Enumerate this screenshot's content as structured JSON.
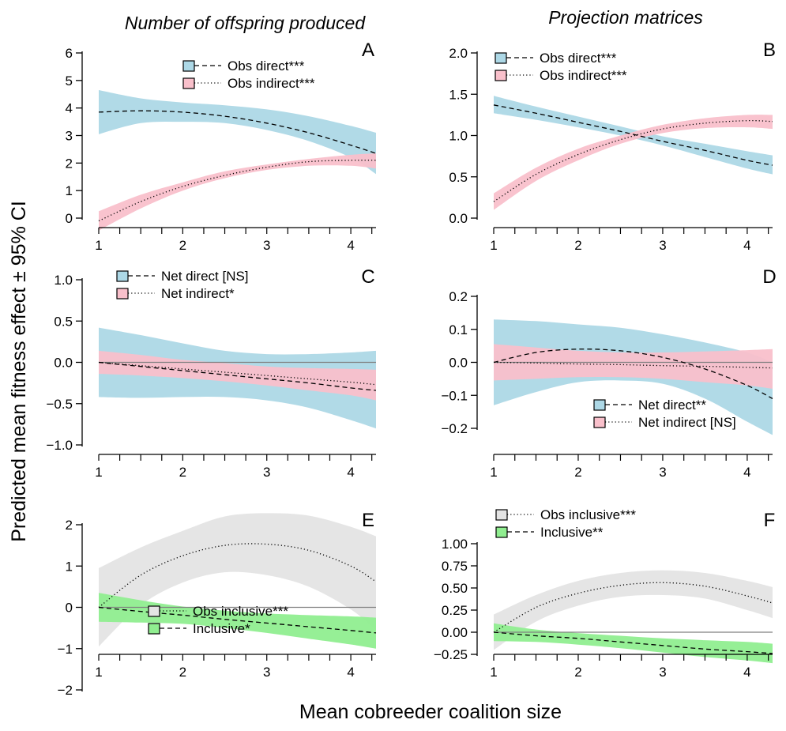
{
  "column_titles": [
    "Number of offspring produced",
    "Projection matrices"
  ],
  "y_axis_label": "Predicted mean fitness effect ± 95% CI",
  "x_axis_label": "Mean cobreeder coalition size",
  "colors": {
    "blue": "#add8e6",
    "pink": "#f9c0cb",
    "gray": "#e4e4e4",
    "green": "#90ee90",
    "zero_line": "#808080"
  },
  "chart_data": [
    {
      "panel": "A",
      "type": "line",
      "xticks": [
        1,
        2,
        3,
        4
      ],
      "xlim": [
        1,
        4.3
      ],
      "yticks": [
        "0",
        "1",
        "2",
        "3",
        "4",
        "5",
        "6"
      ],
      "ylim": [
        0,
        6
      ],
      "zero_line": false,
      "legend": [
        {
          "label": "Obs direct***",
          "color": "blue",
          "dash": "dashed"
        },
        {
          "label": "Obs indirect***",
          "color": "pink",
          "dash": "dotted"
        }
      ],
      "series": [
        {
          "name": "Obs direct***",
          "color": "blue",
          "dash": "dashed",
          "x": [
            1,
            1.5,
            2,
            2.5,
            3,
            3.5,
            4,
            4.3
          ],
          "y": [
            3.85,
            3.9,
            3.85,
            3.7,
            3.45,
            3.1,
            2.65,
            2.35
          ],
          "lower": [
            3.05,
            3.45,
            3.5,
            3.45,
            3.2,
            2.8,
            2.2,
            1.6
          ],
          "upper": [
            4.65,
            4.35,
            4.2,
            4.1,
            3.95,
            3.7,
            3.35,
            3.1
          ]
        },
        {
          "name": "Obs indirect***",
          "color": "pink",
          "dash": "dotted",
          "x": [
            1,
            1.5,
            2,
            2.5,
            3,
            3.5,
            4,
            4.3
          ],
          "y": [
            -0.1,
            0.6,
            1.15,
            1.55,
            1.85,
            2.05,
            2.1,
            2.1
          ],
          "lower": [
            -0.45,
            0.35,
            1.0,
            1.45,
            1.75,
            1.9,
            1.9,
            1.8
          ],
          "upper": [
            0.25,
            0.85,
            1.3,
            1.7,
            1.95,
            2.15,
            2.3,
            2.35
          ]
        }
      ]
    },
    {
      "panel": "B",
      "type": "line",
      "xticks": [
        1,
        2,
        3,
        4
      ],
      "xlim": [
        1,
        4.3
      ],
      "yticks": [
        "0.0",
        "0.5",
        "1.0",
        "1.5",
        "2.0"
      ],
      "ylim": [
        0,
        2
      ],
      "zero_line": false,
      "legend": [
        {
          "label": "Obs direct***",
          "color": "blue",
          "dash": "dashed"
        },
        {
          "label": "Obs indirect***",
          "color": "pink",
          "dash": "dotted"
        }
      ],
      "series": [
        {
          "name": "Obs direct***",
          "color": "blue",
          "dash": "dashed",
          "x": [
            1,
            1.5,
            2,
            2.5,
            3,
            3.5,
            4,
            4.3
          ],
          "y": [
            1.37,
            1.27,
            1.16,
            1.05,
            0.93,
            0.82,
            0.7,
            0.64
          ],
          "lower": [
            1.27,
            1.19,
            1.1,
            1.0,
            0.88,
            0.74,
            0.6,
            0.53
          ],
          "upper": [
            1.48,
            1.35,
            1.23,
            1.11,
            0.99,
            0.9,
            0.81,
            0.76
          ]
        },
        {
          "name": "Obs indirect***",
          "color": "pink",
          "dash": "dotted",
          "x": [
            1,
            1.5,
            2,
            2.5,
            3,
            3.5,
            4,
            4.3
          ],
          "y": [
            0.2,
            0.53,
            0.77,
            0.95,
            1.08,
            1.15,
            1.18,
            1.17
          ],
          "lower": [
            0.1,
            0.45,
            0.7,
            0.9,
            1.03,
            1.09,
            1.1,
            1.08
          ],
          "upper": [
            0.3,
            0.61,
            0.84,
            1.0,
            1.13,
            1.21,
            1.25,
            1.25
          ]
        }
      ]
    },
    {
      "panel": "C",
      "type": "line",
      "xticks": [
        1,
        2,
        3,
        4
      ],
      "xlim": [
        1,
        4.3
      ],
      "yticks": [
        "−1.0",
        "−0.5",
        "0.0",
        "0.5",
        "1.0"
      ],
      "ylim": [
        -1,
        1
      ],
      "zero_line": true,
      "legend": [
        {
          "label": "Net direct [NS]",
          "color": "blue",
          "dash": "dashed"
        },
        {
          "label": "Net indirect*",
          "color": "pink",
          "dash": "dotted"
        }
      ],
      "series": [
        {
          "name": "Net direct [NS]",
          "color": "blue",
          "dash": "dashed",
          "x": [
            1,
            1.5,
            2,
            2.5,
            3,
            3.5,
            4,
            4.3
          ],
          "y": [
            0.0,
            -0.05,
            -0.1,
            -0.15,
            -0.2,
            -0.25,
            -0.31,
            -0.34
          ],
          "lower": [
            -0.42,
            -0.43,
            -0.42,
            -0.42,
            -0.46,
            -0.55,
            -0.7,
            -0.8
          ],
          "upper": [
            0.42,
            0.33,
            0.23,
            0.14,
            0.1,
            0.1,
            0.12,
            0.14
          ]
        },
        {
          "name": "Net indirect*",
          "color": "pink",
          "dash": "dotted",
          "x": [
            1,
            1.5,
            2,
            2.5,
            3,
            3.5,
            4,
            4.3
          ],
          "y": [
            0.0,
            -0.04,
            -0.08,
            -0.12,
            -0.16,
            -0.2,
            -0.24,
            -0.27
          ],
          "lower": [
            -0.14,
            -0.16,
            -0.19,
            -0.23,
            -0.28,
            -0.34,
            -0.4,
            -0.46
          ],
          "upper": [
            0.14,
            0.09,
            0.03,
            -0.01,
            -0.05,
            -0.07,
            -0.08,
            -0.09
          ]
        }
      ]
    },
    {
      "panel": "D",
      "type": "line",
      "xticks": [
        1,
        2,
        3,
        4
      ],
      "xlim": [
        1,
        4.3
      ],
      "yticks": [
        "−0.2",
        "−0.1",
        "0.0",
        "0.1",
        "0.2"
      ],
      "ylim": [
        -0.2,
        0.2
      ],
      "zero_line": true,
      "legend": [
        {
          "label": "Net direct**",
          "color": "blue",
          "dash": "dashed"
        },
        {
          "label": "Net indirect [NS]",
          "color": "pink",
          "dash": "dotted"
        }
      ],
      "series": [
        {
          "name": "Net direct**",
          "color": "blue",
          "dash": "dashed",
          "x": [
            1,
            1.5,
            2,
            2.5,
            3,
            3.5,
            4,
            4.3
          ],
          "y": [
            0.0,
            0.03,
            0.04,
            0.035,
            0.015,
            -0.02,
            -0.07,
            -0.11
          ],
          "lower": [
            -0.13,
            -0.09,
            -0.06,
            -0.055,
            -0.065,
            -0.11,
            -0.18,
            -0.22
          ],
          "upper": [
            0.13,
            0.125,
            0.115,
            0.105,
            0.085,
            0.06,
            0.03,
            0.0
          ]
        },
        {
          "name": "Net indirect [NS]",
          "color": "pink",
          "dash": "dotted",
          "x": [
            1,
            1.5,
            2,
            2.5,
            3,
            3.5,
            4,
            4.3
          ],
          "y": [
            0.0,
            -0.002,
            -0.005,
            -0.007,
            -0.01,
            -0.012,
            -0.015,
            -0.017
          ],
          "lower": [
            -0.055,
            -0.05,
            -0.045,
            -0.045,
            -0.05,
            -0.06,
            -0.07,
            -0.08
          ],
          "upper": [
            0.055,
            0.045,
            0.035,
            0.03,
            0.03,
            0.033,
            0.037,
            0.04
          ]
        }
      ]
    },
    {
      "panel": "E",
      "type": "line",
      "xticks": [
        1,
        2,
        3,
        4
      ],
      "xlim": [
        1,
        4.3
      ],
      "yticks": [
        "−2",
        "−1",
        "0",
        "1",
        "2"
      ],
      "ylim": [
        -2,
        2
      ],
      "zero_line": true,
      "legend": [
        {
          "label": "Obs inclusive***",
          "color": "gray",
          "dash": "dotted"
        },
        {
          "label": "Inclusive*",
          "color": "green",
          "dash": "dashed"
        }
      ],
      "series": [
        {
          "name": "Obs inclusive***",
          "color": "gray",
          "dash": "dotted",
          "x": [
            1,
            1.5,
            2,
            2.5,
            3,
            3.5,
            4,
            4.3
          ],
          "y": [
            0.0,
            0.78,
            1.25,
            1.5,
            1.53,
            1.38,
            1.0,
            0.62
          ],
          "lower": [
            -0.95,
            0.05,
            0.6,
            0.85,
            0.78,
            0.5,
            -0.05,
            -0.55
          ],
          "upper": [
            0.95,
            1.45,
            1.85,
            2.2,
            2.28,
            2.22,
            1.95,
            1.72
          ]
        },
        {
          "name": "Inclusive*",
          "color": "green",
          "dash": "dashed",
          "x": [
            1,
            1.5,
            2,
            2.5,
            3,
            3.5,
            4,
            4.3
          ],
          "y": [
            0.0,
            -0.1,
            -0.19,
            -0.29,
            -0.38,
            -0.47,
            -0.56,
            -0.62
          ],
          "lower": [
            -0.35,
            -0.37,
            -0.4,
            -0.5,
            -0.62,
            -0.76,
            -0.9,
            -1.0
          ],
          "upper": [
            0.35,
            0.17,
            0.02,
            -0.08,
            -0.15,
            -0.19,
            -0.22,
            -0.25
          ]
        }
      ]
    },
    {
      "panel": "F",
      "type": "line",
      "xticks": [
        1,
        2,
        3,
        4
      ],
      "xlim": [
        1,
        4.3
      ],
      "yticks": [
        "−0.25",
        "0.00",
        "0.25",
        "0.50",
        "0.75",
        "1.00"
      ],
      "ylim": [
        -0.25,
        1
      ],
      "zero_line": true,
      "legend": [
        {
          "label": "Obs inclusive***",
          "color": "gray",
          "dash": "dotted"
        },
        {
          "label": "Inclusive**",
          "color": "green",
          "dash": "dashed"
        }
      ],
      "series": [
        {
          "name": "Obs inclusive***",
          "color": "gray",
          "dash": "dotted",
          "x": [
            1,
            1.5,
            2,
            2.5,
            3,
            3.5,
            4,
            4.3
          ],
          "y": [
            0.0,
            0.28,
            0.44,
            0.53,
            0.56,
            0.52,
            0.41,
            0.33
          ],
          "lower": [
            -0.2,
            0.12,
            0.3,
            0.4,
            0.42,
            0.38,
            0.25,
            0.16
          ],
          "upper": [
            0.2,
            0.42,
            0.58,
            0.67,
            0.7,
            0.67,
            0.58,
            0.51
          ]
        },
        {
          "name": "Inclusive**",
          "color": "green",
          "dash": "dashed",
          "x": [
            1,
            1.5,
            2,
            2.5,
            3,
            3.5,
            4,
            4.3
          ],
          "y": [
            0.0,
            -0.04,
            -0.07,
            -0.11,
            -0.15,
            -0.19,
            -0.22,
            -0.24
          ],
          "lower": [
            -0.1,
            -0.11,
            -0.14,
            -0.18,
            -0.23,
            -0.28,
            -0.32,
            -0.35
          ],
          "upper": [
            0.1,
            0.03,
            -0.01,
            -0.04,
            -0.07,
            -0.09,
            -0.11,
            -0.13
          ]
        }
      ]
    }
  ]
}
